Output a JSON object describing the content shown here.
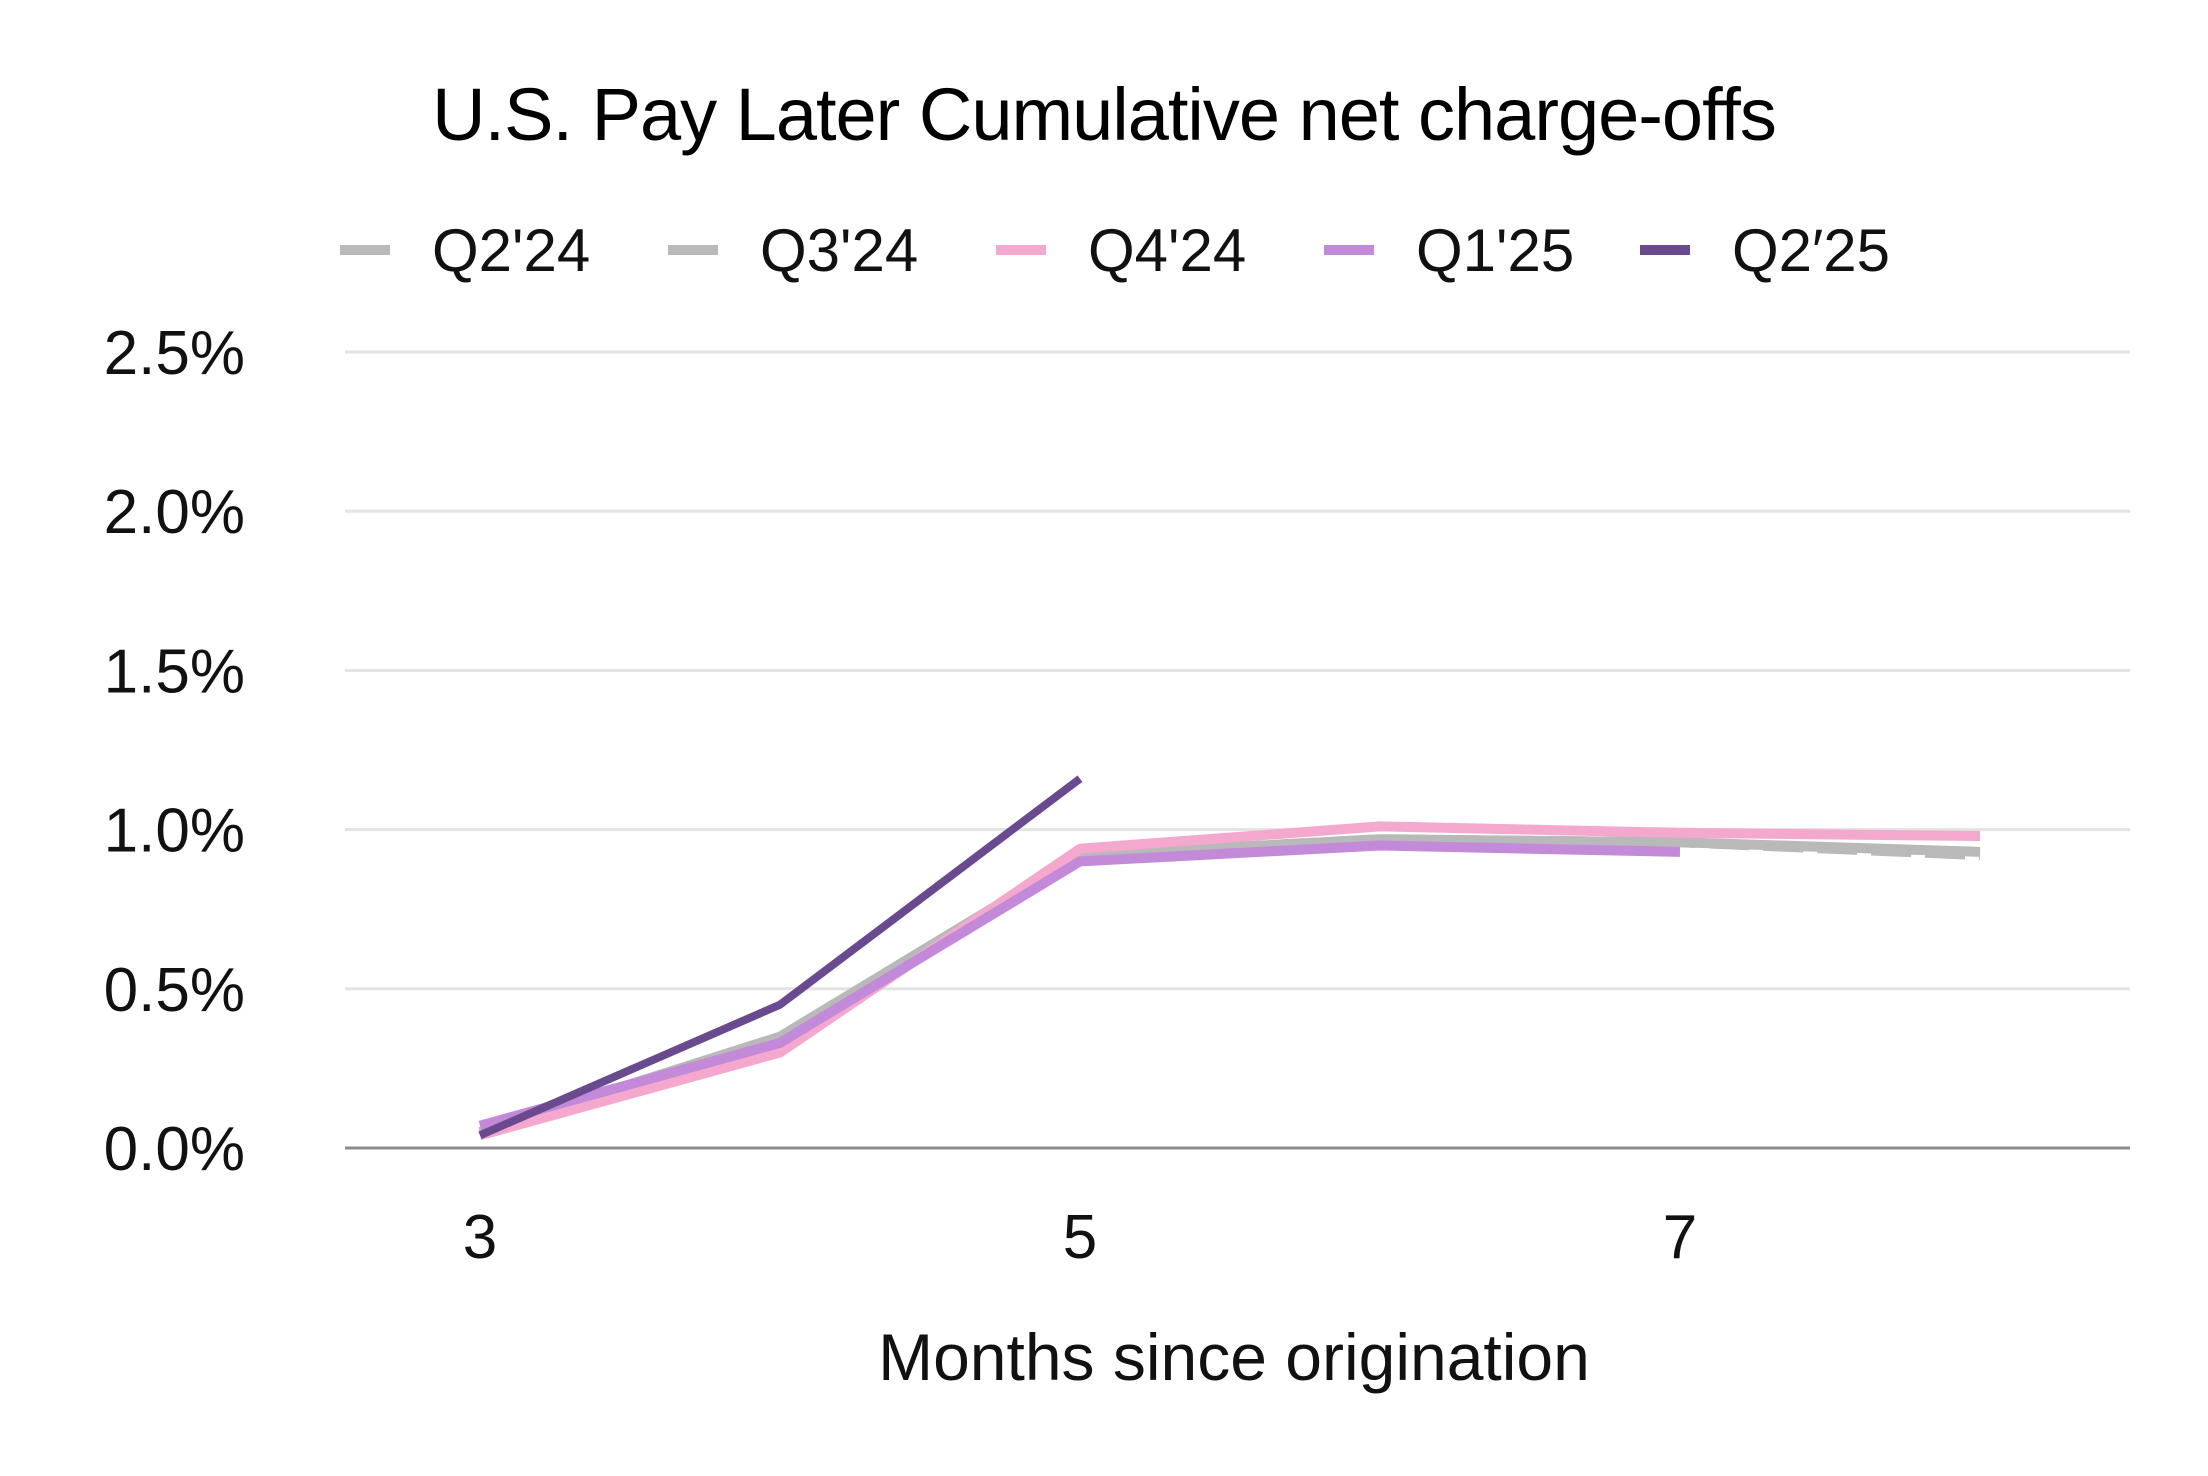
{
  "chart_data": {
    "type": "line",
    "title": "U.S. Pay Later Cumulative net charge-offs",
    "xlabel": "Months since origination",
    "ylabel": "",
    "x": [
      3,
      4,
      5,
      6,
      7,
      8
    ],
    "x_tick_labels": [
      "3",
      "5",
      "7"
    ],
    "x_ticks": [
      3,
      5,
      7
    ],
    "xlim": [
      2.55,
      8.5
    ],
    "ylim": [
      0,
      2.5
    ],
    "y_ticks": [
      0,
      0.5,
      1.0,
      1.5,
      2.0,
      2.5
    ],
    "y_tick_labels": [
      "0.0%",
      "0.5%",
      "1.0%",
      "1.5%",
      "2.0%",
      "2.5%"
    ],
    "grid": "horizontal",
    "legend_position": "top",
    "series": [
      {
        "name": "Q2'24",
        "color": "#b9b9b9",
        "dash": true,
        "values": [
          0.05,
          0.34,
          0.92,
          0.97,
          0.96,
          0.92
        ]
      },
      {
        "name": "Q3'24",
        "color": "#b9b9b9",
        "dash": false,
        "values": [
          0.05,
          0.35,
          0.92,
          0.97,
          0.96,
          0.93
        ]
      },
      {
        "name": "Q4'24",
        "color": "#f4a8cd",
        "dash": false,
        "values": [
          0.04,
          0.3,
          0.94,
          1.01,
          0.99,
          0.98
        ]
      },
      {
        "name": "Q1'25",
        "color": "#c38ad9",
        "dash": false,
        "values": [
          0.07,
          0.33,
          0.9,
          0.95,
          0.93,
          null
        ]
      },
      {
        "name": "Q2′25",
        "color": "#6a4a8e",
        "dash": false,
        "values": [
          0.04,
          0.45,
          1.16,
          null,
          null,
          null
        ]
      }
    ]
  }
}
